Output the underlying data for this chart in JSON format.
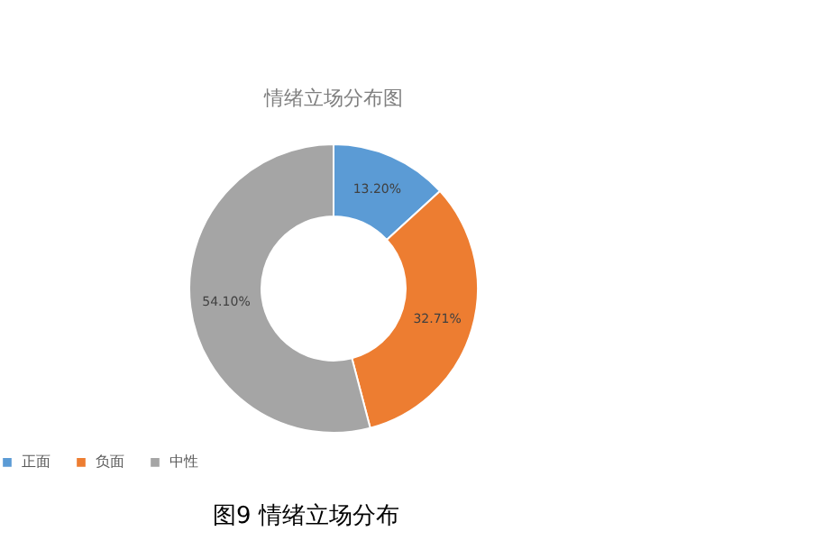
{
  "chart_data": {
    "type": "donut",
    "title": "情绪立场分布图",
    "categories": [
      "正面",
      "负面",
      "中性"
    ],
    "values": [
      13.2,
      32.71,
      54.1
    ],
    "value_labels": [
      "13.20%",
      "32.71%",
      "54.10%"
    ],
    "colors": [
      "#5b9bd5",
      "#ed7d31",
      "#a5a5a5"
    ],
    "legend": "bottom",
    "annotations": [
      "图9 情绪立场分布"
    ]
  }
}
